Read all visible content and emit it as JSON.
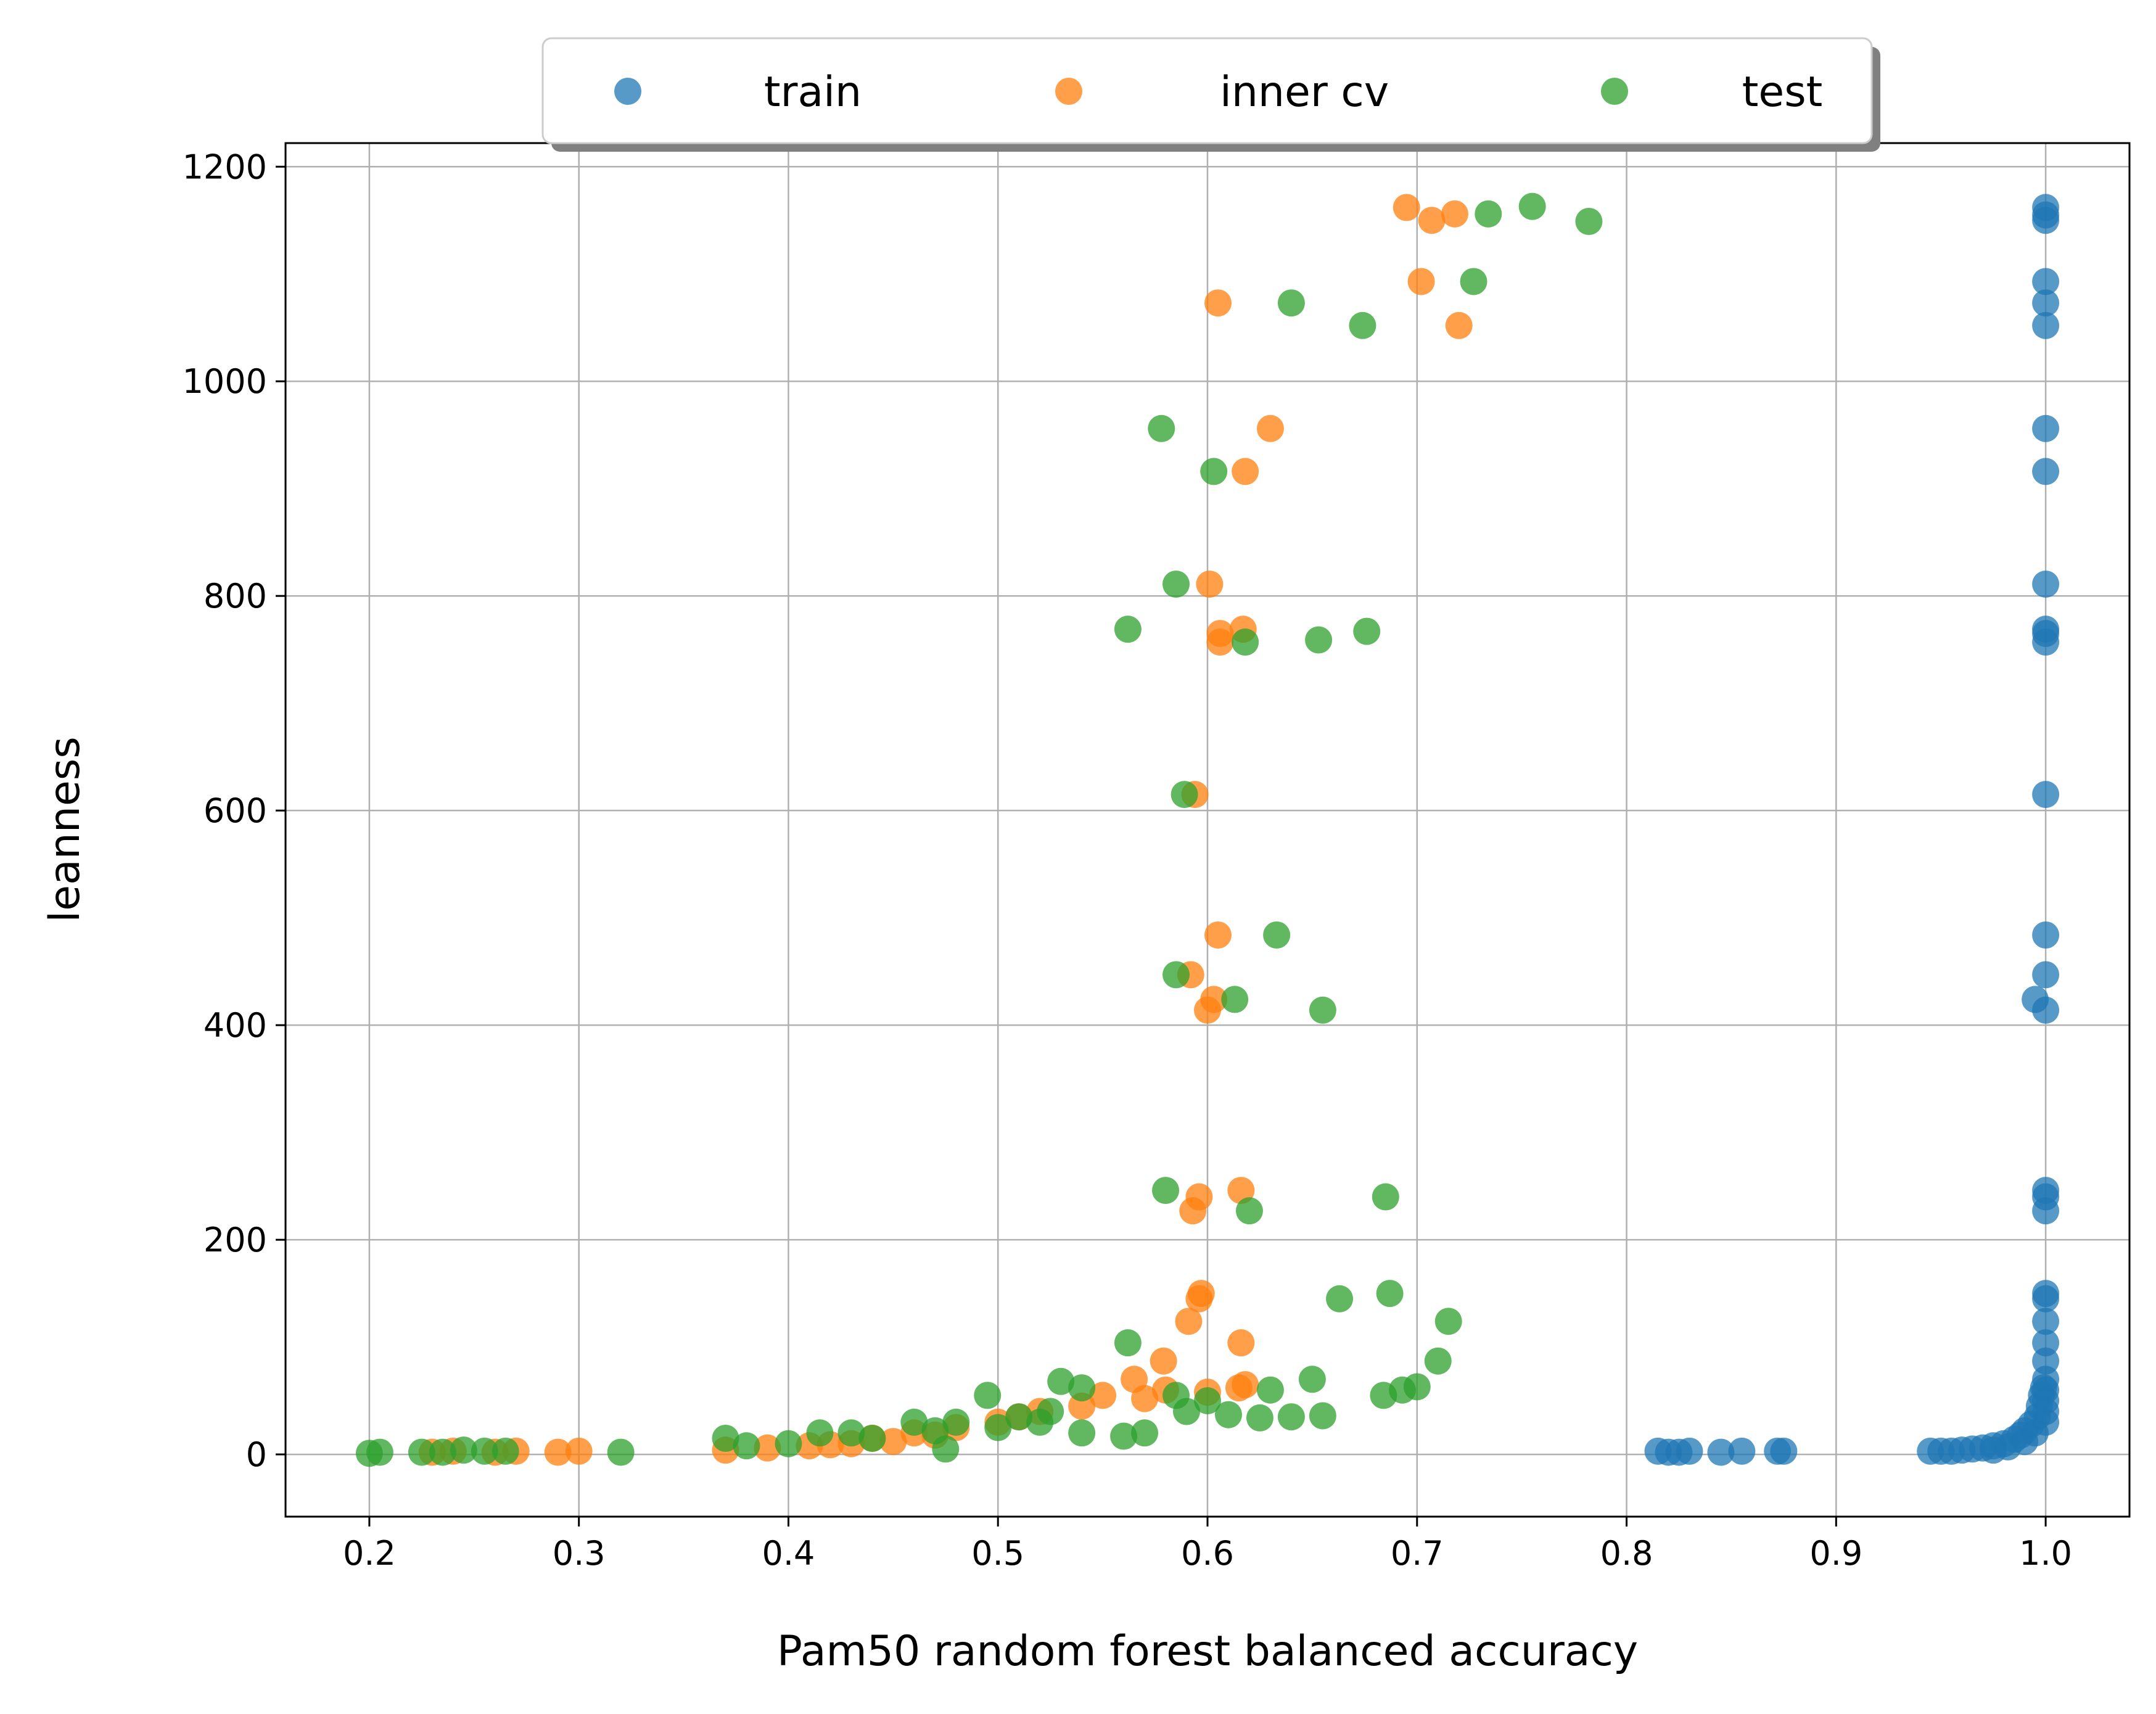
{
  "chart_data": {
    "type": "scatter",
    "title": "",
    "xlabel": "Pam50 random forest balanced accuracy",
    "ylabel": "leanness",
    "xlim": [
      0.16,
      1.04
    ],
    "ylim": [
      -58,
      1222
    ],
    "xticks": [
      0.2,
      0.3,
      0.4,
      0.5,
      0.6,
      0.7,
      0.8,
      0.9,
      1.0
    ],
    "xtick_labels": [
      "0.2",
      "0.3",
      "0.4",
      "0.5",
      "0.6",
      "0.7",
      "0.8",
      "0.9",
      "1.0"
    ],
    "yticks": [
      0,
      200,
      400,
      600,
      800,
      1000,
      1200
    ],
    "ytick_labels": [
      "0",
      "200",
      "400",
      "600",
      "800",
      "1000",
      "1200"
    ],
    "grid": true,
    "legend": {
      "placement": "top-center",
      "columns": 3,
      "shadow": true
    },
    "series": [
      {
        "name": "train",
        "color": "#1f77b4",
        "points": [
          [
            1.0,
            1162
          ],
          [
            1.0,
            1155
          ],
          [
            1.0,
            1150
          ],
          [
            1.0,
            1093
          ],
          [
            1.0,
            1073
          ],
          [
            1.0,
            1052
          ],
          [
            1.0,
            956
          ],
          [
            1.0,
            916
          ],
          [
            1.0,
            811
          ],
          [
            1.0,
            769
          ],
          [
            1.0,
            765
          ],
          [
            1.0,
            757
          ],
          [
            1.0,
            615
          ],
          [
            1.0,
            484
          ],
          [
            1.0,
            447
          ],
          [
            0.995,
            424
          ],
          [
            1.0,
            414
          ],
          [
            1.0,
            246
          ],
          [
            1.0,
            240
          ],
          [
            1.0,
            227
          ],
          [
            1.0,
            150
          ],
          [
            1.0,
            145
          ],
          [
            1.0,
            124
          ],
          [
            1.0,
            104
          ],
          [
            1.0,
            87
          ],
          [
            1.0,
            70
          ],
          [
            0.999,
            62
          ],
          [
            0.998,
            55
          ],
          [
            1.0,
            50
          ],
          [
            0.997,
            45
          ],
          [
            1.0,
            40
          ],
          [
            0.996,
            35
          ],
          [
            0.993,
            28
          ],
          [
            0.99,
            22
          ],
          [
            0.988,
            18
          ],
          [
            0.985,
            14
          ],
          [
            0.98,
            10
          ],
          [
            0.975,
            8
          ],
          [
            0.97,
            6
          ],
          [
            0.965,
            5
          ],
          [
            0.96,
            4
          ],
          [
            0.955,
            3
          ],
          [
            0.95,
            3
          ],
          [
            0.945,
            3
          ],
          [
            0.975,
            4
          ],
          [
            0.982,
            7
          ],
          [
            0.99,
            12
          ],
          [
            0.995,
            20
          ],
          [
            1.0,
            30
          ],
          [
            1.0,
            60
          ],
          [
            0.815,
            3
          ],
          [
            0.82,
            2
          ],
          [
            0.825,
            2
          ],
          [
            0.83,
            3
          ],
          [
            0.845,
            2
          ],
          [
            0.855,
            3
          ],
          [
            0.872,
            3
          ],
          [
            0.875,
            3
          ]
        ]
      },
      {
        "name": "inner cv",
        "color": "#ff7f0e",
        "points": [
          [
            0.695,
            1162
          ],
          [
            0.718,
            1156
          ],
          [
            0.707,
            1150
          ],
          [
            0.702,
            1093
          ],
          [
            0.605,
            1073
          ],
          [
            0.72,
            1052
          ],
          [
            0.63,
            956
          ],
          [
            0.618,
            916
          ],
          [
            0.601,
            811
          ],
          [
            0.617,
            769
          ],
          [
            0.606,
            765
          ],
          [
            0.606,
            757
          ],
          [
            0.594,
            615
          ],
          [
            0.605,
            484
          ],
          [
            0.592,
            447
          ],
          [
            0.603,
            424
          ],
          [
            0.6,
            414
          ],
          [
            0.616,
            246
          ],
          [
            0.596,
            240
          ],
          [
            0.593,
            227
          ],
          [
            0.597,
            150
          ],
          [
            0.596,
            145
          ],
          [
            0.591,
            124
          ],
          [
            0.616,
            104
          ],
          [
            0.579,
            87
          ],
          [
            0.565,
            70
          ],
          [
            0.618,
            65
          ],
          [
            0.58,
            60
          ],
          [
            0.55,
            55
          ],
          [
            0.52,
            40
          ],
          [
            0.5,
            30
          ],
          [
            0.48,
            25
          ],
          [
            0.46,
            20
          ],
          [
            0.44,
            15
          ],
          [
            0.43,
            10
          ],
          [
            0.41,
            8
          ],
          [
            0.39,
            6
          ],
          [
            0.37,
            4
          ],
          [
            0.3,
            3
          ],
          [
            0.29,
            2
          ],
          [
            0.27,
            3
          ],
          [
            0.26,
            2
          ],
          [
            0.24,
            3
          ],
          [
            0.23,
            2
          ],
          [
            0.42,
            9
          ],
          [
            0.45,
            12
          ],
          [
            0.47,
            18
          ],
          [
            0.51,
            35
          ],
          [
            0.54,
            45
          ],
          [
            0.57,
            52
          ],
          [
            0.6,
            58
          ],
          [
            0.615,
            62
          ]
        ]
      },
      {
        "name": "test",
        "color": "#2ca02c",
        "points": [
          [
            0.755,
            1163
          ],
          [
            0.734,
            1156
          ],
          [
            0.782,
            1149
          ],
          [
            0.727,
            1093
          ],
          [
            0.64,
            1073
          ],
          [
            0.674,
            1052
          ],
          [
            0.578,
            956
          ],
          [
            0.603,
            916
          ],
          [
            0.585,
            811
          ],
          [
            0.562,
            769
          ],
          [
            0.676,
            767
          ],
          [
            0.653,
            759
          ],
          [
            0.618,
            757
          ],
          [
            0.589,
            615
          ],
          [
            0.633,
            484
          ],
          [
            0.585,
            447
          ],
          [
            0.613,
            424
          ],
          [
            0.655,
            414
          ],
          [
            0.58,
            246
          ],
          [
            0.685,
            240
          ],
          [
            0.62,
            227
          ],
          [
            0.687,
            150
          ],
          [
            0.663,
            145
          ],
          [
            0.715,
            124
          ],
          [
            0.562,
            104
          ],
          [
            0.71,
            87
          ],
          [
            0.7,
            63
          ],
          [
            0.693,
            60
          ],
          [
            0.684,
            55
          ],
          [
            0.65,
            70
          ],
          [
            0.63,
            60
          ],
          [
            0.64,
            35
          ],
          [
            0.625,
            34
          ],
          [
            0.61,
            37
          ],
          [
            0.59,
            40
          ],
          [
            0.57,
            20
          ],
          [
            0.56,
            17
          ],
          [
            0.54,
            20
          ],
          [
            0.53,
            68
          ],
          [
            0.54,
            62
          ],
          [
            0.52,
            30
          ],
          [
            0.5,
            25
          ],
          [
            0.495,
            55
          ],
          [
            0.48,
            30
          ],
          [
            0.475,
            5
          ],
          [
            0.46,
            30
          ],
          [
            0.44,
            15
          ],
          [
            0.43,
            20
          ],
          [
            0.415,
            20
          ],
          [
            0.4,
            10
          ],
          [
            0.38,
            8
          ],
          [
            0.37,
            15
          ],
          [
            0.32,
            2
          ],
          [
            0.265,
            3
          ],
          [
            0.255,
            3
          ],
          [
            0.245,
            4
          ],
          [
            0.235,
            2
          ],
          [
            0.225,
            2
          ],
          [
            0.205,
            2
          ],
          [
            0.2,
            1
          ],
          [
            0.585,
            55
          ],
          [
            0.6,
            50
          ],
          [
            0.655,
            36
          ],
          [
            0.525,
            40
          ],
          [
            0.51,
            35
          ],
          [
            0.47,
            22
          ]
        ]
      }
    ]
  }
}
